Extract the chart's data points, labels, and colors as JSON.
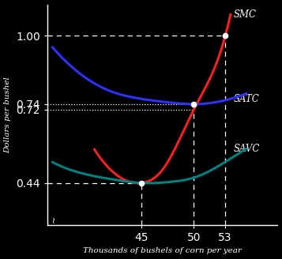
{
  "xlabel": "Thousands of bushels of corn per year",
  "ylabel": "Dollars per bushel",
  "xlim": [
    36,
    58
  ],
  "ylim": [
    0.28,
    1.12
  ],
  "yticks": [
    0.44,
    0.72,
    0.74,
    1.0
  ],
  "ytick_labels": [
    "0.44",
    "0.72",
    "0.74",
    "1.00"
  ],
  "xticks": [
    45,
    50,
    53
  ],
  "xtick_labels": [
    "45",
    "50",
    "53"
  ],
  "background_color": "#000000",
  "text_color": "#ffffff",
  "smc_color": "#ff2020",
  "satc_color": "#3030ff",
  "savc_color": "#008080",
  "dot_points": [
    [
      45,
      0.44
    ],
    [
      50,
      0.74
    ],
    [
      53,
      1.0
    ]
  ],
  "label_smc": "SMC",
  "label_satc": "SATC",
  "label_savc": "SAVC"
}
